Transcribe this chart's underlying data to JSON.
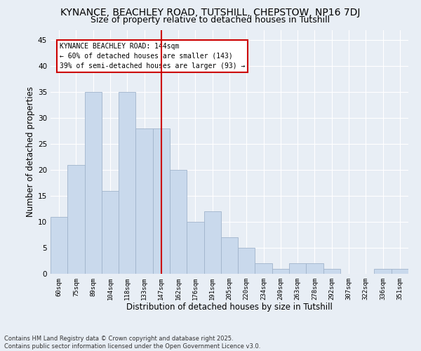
{
  "title1": "KYNANCE, BEACHLEY ROAD, TUTSHILL, CHEPSTOW, NP16 7DJ",
  "title2": "Size of property relative to detached houses in Tutshill",
  "xlabel": "Distribution of detached houses by size in Tutshill",
  "ylabel": "Number of detached properties",
  "categories": [
    "60sqm",
    "75sqm",
    "89sqm",
    "104sqm",
    "118sqm",
    "133sqm",
    "147sqm",
    "162sqm",
    "176sqm",
    "191sqm",
    "205sqm",
    "220sqm",
    "234sqm",
    "249sqm",
    "263sqm",
    "278sqm",
    "292sqm",
    "307sqm",
    "322sqm",
    "336sqm",
    "351sqm"
  ],
  "values": [
    11,
    21,
    35,
    16,
    35,
    28,
    28,
    20,
    10,
    12,
    7,
    5,
    2,
    1,
    2,
    2,
    1,
    0,
    0,
    1,
    1
  ],
  "bar_color": "#c9d9ec",
  "bar_edgecolor": "#a0b4cc",
  "vline_x": 6.0,
  "vline_color": "#cc0000",
  "annotation_lines": [
    "KYNANCE BEACHLEY ROAD: 144sqm",
    "← 60% of detached houses are smaller (143)",
    "39% of semi-detached houses are larger (93) →"
  ],
  "ylim": [
    0,
    47
  ],
  "yticks": [
    0,
    5,
    10,
    15,
    20,
    25,
    30,
    35,
    40,
    45
  ],
  "background_color": "#e8eef5",
  "plot_bg_color": "#e8eef5",
  "grid_color": "#ffffff",
  "footer": "Contains HM Land Registry data © Crown copyright and database right 2025.\nContains public sector information licensed under the Open Government Licence v3.0.",
  "title_fontsize": 10,
  "subtitle_fontsize": 9,
  "xlabel_fontsize": 8.5,
  "ylabel_fontsize": 8.5
}
